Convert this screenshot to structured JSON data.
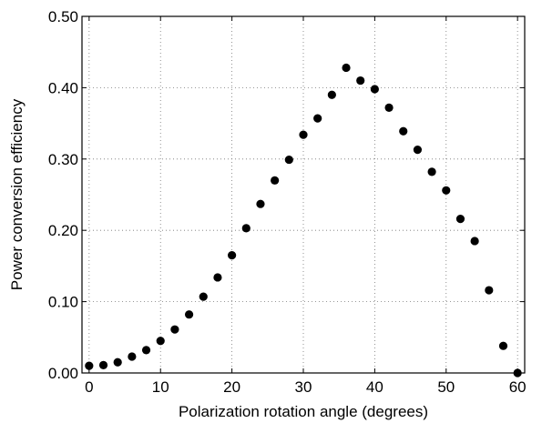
{
  "chart_data": {
    "type": "scatter",
    "title": "",
    "xlabel": "Polarization rotation angle (degrees)",
    "ylabel": "Power conversion efficiency",
    "xlim": [
      -1,
      61
    ],
    "ylim": [
      0,
      0.5
    ],
    "x_ticks": [
      0,
      10,
      20,
      30,
      40,
      50,
      60
    ],
    "x_tick_labels": [
      "0",
      "10",
      "20",
      "30",
      "40",
      "50",
      "60"
    ],
    "y_ticks": [
      0,
      0.1,
      0.2,
      0.3,
      0.4,
      0.5
    ],
    "y_tick_labels": [
      "0.00",
      "0.10",
      "0.20",
      "0.30",
      "0.40",
      "0.50"
    ],
    "grid": true,
    "marker_color": "#000000",
    "x": [
      0,
      2,
      4,
      6,
      8,
      10,
      12,
      14,
      16,
      18,
      20,
      22,
      24,
      26,
      28,
      30,
      32,
      34,
      36,
      38,
      40,
      42,
      44,
      46,
      48,
      50,
      52,
      54,
      56,
      58,
      60
    ],
    "y": [
      0.01,
      0.011,
      0.015,
      0.023,
      0.032,
      0.045,
      0.061,
      0.082,
      0.107,
      0.134,
      0.165,
      0.203,
      0.237,
      0.27,
      0.299,
      0.334,
      0.357,
      0.39,
      0.428,
      0.41,
      0.398,
      0.372,
      0.339,
      0.313,
      0.282,
      0.256,
      0.216,
      0.185,
      0.116,
      0.038,
      0.0
    ]
  }
}
